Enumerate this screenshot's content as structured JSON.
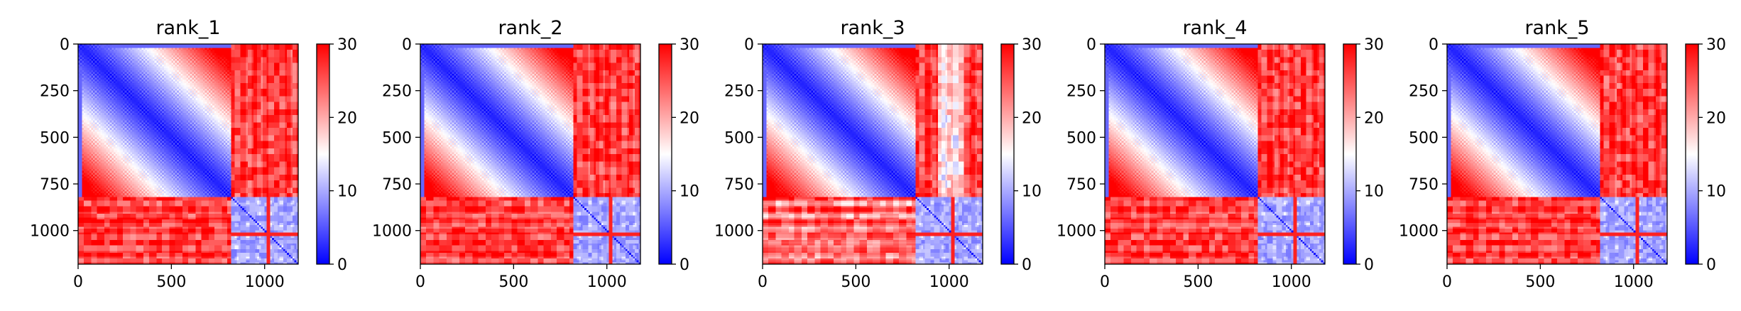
{
  "chart_data": [
    {
      "type": "heatmap",
      "title": "rank_1",
      "xlabel": "",
      "ylabel": "",
      "matrix_size": 1180,
      "x_ticks": [
        "0",
        "500",
        "1000"
      ],
      "y_ticks": [
        "0",
        "250",
        "500",
        "750",
        "1000"
      ],
      "colorbar": {
        "colormap": "bwr",
        "vmin": 0,
        "vmax": 30,
        "ticks": [
          "0",
          "10",
          "20",
          "30"
        ]
      },
      "block_boundary": 820,
      "pattern": "low-values-within-blocks"
    },
    {
      "type": "heatmap",
      "title": "rank_2",
      "xlabel": "",
      "ylabel": "",
      "matrix_size": 1180,
      "x_ticks": [
        "0",
        "500",
        "1000"
      ],
      "y_ticks": [
        "0",
        "250",
        "500",
        "750",
        "1000"
      ],
      "colorbar": {
        "colormap": "bwr",
        "vmin": 0,
        "vmax": 30,
        "ticks": [
          "0",
          "10",
          "20",
          "30"
        ]
      },
      "block_boundary": 820,
      "pattern": "low-values-within-blocks"
    },
    {
      "type": "heatmap",
      "title": "rank_3",
      "xlabel": "",
      "ylabel": "",
      "matrix_size": 1180,
      "x_ticks": [
        "0",
        "500",
        "1000"
      ],
      "y_ticks": [
        "0",
        "250",
        "500",
        "750",
        "1000"
      ],
      "colorbar": {
        "colormap": "bwr",
        "vmin": 0,
        "vmax": 30,
        "ticks": [
          "0",
          "10",
          "20",
          "30"
        ]
      },
      "block_boundary": 820,
      "pattern": "low-values-within-blocks"
    },
    {
      "type": "heatmap",
      "title": "rank_4",
      "xlabel": "",
      "ylabel": "",
      "matrix_size": 1180,
      "x_ticks": [
        "0",
        "500",
        "1000"
      ],
      "y_ticks": [
        "0",
        "250",
        "500",
        "750",
        "1000"
      ],
      "colorbar": {
        "colormap": "bwr",
        "vmin": 0,
        "vmax": 30,
        "ticks": [
          "0",
          "10",
          "20",
          "30"
        ]
      },
      "block_boundary": 820,
      "pattern": "low-values-within-blocks"
    },
    {
      "type": "heatmap",
      "title": "rank_5",
      "xlabel": "",
      "ylabel": "",
      "matrix_size": 1180,
      "x_ticks": [
        "0",
        "500",
        "1000"
      ],
      "y_ticks": [
        "0",
        "250",
        "500",
        "750",
        "1000"
      ],
      "colorbar": {
        "colormap": "bwr",
        "vmin": 0,
        "vmax": 30,
        "ticks": [
          "0",
          "10",
          "20",
          "30"
        ]
      },
      "block_boundary": 820,
      "pattern": "low-values-within-blocks"
    }
  ],
  "colors": {
    "low": "#0000ff",
    "mid": "#ffffff",
    "high": "#ff0000"
  }
}
